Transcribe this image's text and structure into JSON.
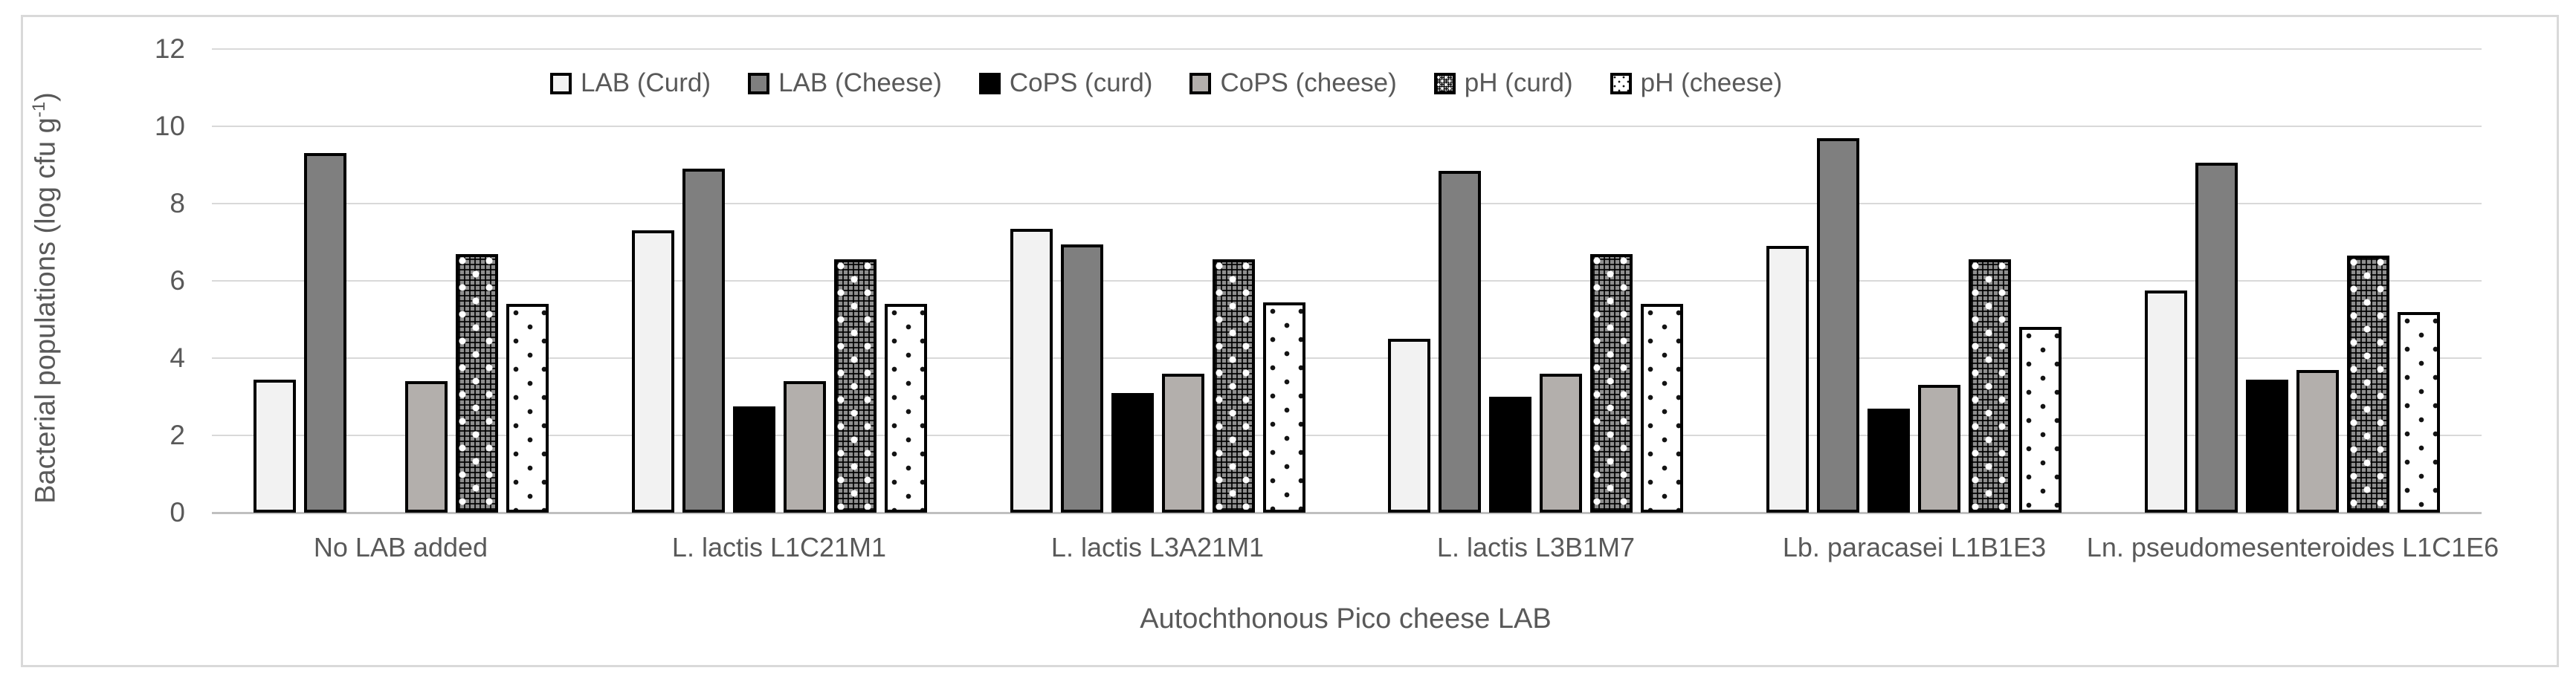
{
  "figure": {
    "background": "#ffffff",
    "border_color": "#d9d9d9"
  },
  "chart_data": {
    "type": "bar",
    "title": "",
    "categories": [
      "No LAB added",
      "L. lactis L1C21M1",
      "L. lactis L3A21M1",
      "L. lactis L3B1M7",
      "Lb. paracasei L1B1E3",
      "Ln. pseudomesenteroides L1C1E6"
    ],
    "series": [
      {
        "name": "LAB (Curd)",
        "style": "lab-curd",
        "fill": "#f2f2f2",
        "values": [
          3.45,
          7.3,
          7.35,
          4.5,
          6.9,
          5.75
        ]
      },
      {
        "name": "LAB (Cheese)",
        "style": "lab-cheese",
        "fill": "#7f7f7f",
        "values": [
          9.3,
          8.9,
          6.95,
          8.85,
          9.7,
          9.05
        ]
      },
      {
        "name": "CoPS (curd)",
        "style": "cops-curd",
        "fill": "#000000",
        "values": [
          0,
          2.75,
          3.1,
          3.0,
          2.7,
          3.45
        ]
      },
      {
        "name": "CoPS (cheese)",
        "style": "cops-cheese",
        "fill": "#b3afac",
        "values": [
          3.4,
          3.4,
          3.6,
          3.6,
          3.3,
          3.7
        ]
      },
      {
        "name": "pH (curd)",
        "style": "ph-curd",
        "fill": "dense-dot-grid-pattern",
        "values": [
          6.7,
          6.55,
          6.55,
          6.7,
          6.55,
          6.65
        ]
      },
      {
        "name": "pH (cheese)",
        "style": "ph-cheese",
        "fill": "sparse-dots-pattern",
        "values": [
          5.4,
          5.4,
          5.45,
          5.4,
          4.8,
          5.2
        ]
      }
    ],
    "xlabel": "Autochthonous Pico cheese LAB",
    "ylabel": {
      "main": "Bacterial populations (log cfu g",
      "sup": "-1",
      "close": ")"
    },
    "ylim": [
      0,
      12
    ],
    "yticks": [
      0,
      2,
      4,
      6,
      8,
      10,
      12
    ],
    "grid": true,
    "legend_position": "top",
    "bar_outline": "#000000",
    "gridline_color": "#d9d9d9",
    "axis_line_color": "#bfbfbf",
    "text_color": "#595959"
  }
}
